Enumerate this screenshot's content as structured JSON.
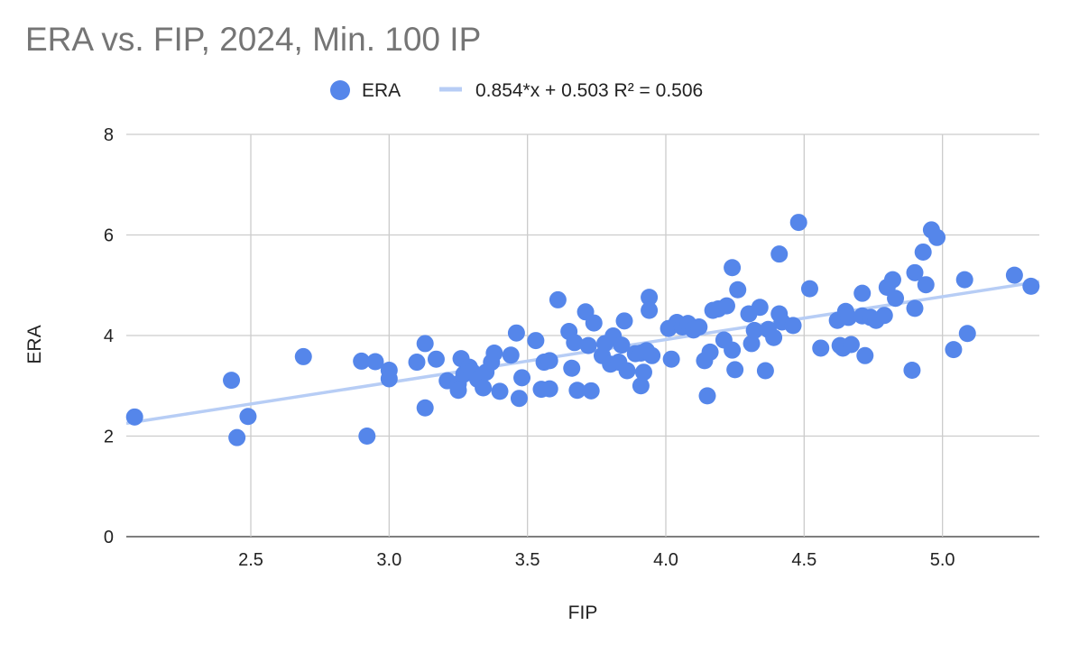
{
  "chart_data": {
    "type": "scatter",
    "title": "ERA vs. FIP, 2024, Min. 100 IP",
    "xlabel": "FIP",
    "ylabel": "ERA",
    "xlim": [
      2.05,
      5.35
    ],
    "ylim": [
      0,
      8
    ],
    "x_ticks": [
      2.5,
      3.0,
      3.5,
      4.0,
      4.5,
      5.0
    ],
    "x_tick_labels": [
      "2.5",
      "3.0",
      "3.5",
      "4.0",
      "4.5",
      "5.0"
    ],
    "y_ticks": [
      0,
      2,
      4,
      6,
      8
    ],
    "y_tick_labels": [
      "0",
      "2",
      "4",
      "6",
      "8"
    ],
    "grid": true,
    "legend_position": "top-center",
    "series": [
      {
        "name": "ERA",
        "color": "#5586ea",
        "points": [
          [
            2.08,
            2.38
          ],
          [
            2.43,
            3.11
          ],
          [
            2.45,
            1.97
          ],
          [
            2.49,
            2.39
          ],
          [
            2.69,
            3.58
          ],
          [
            2.9,
            3.49
          ],
          [
            2.92,
            2.0
          ],
          [
            2.95,
            3.48
          ],
          [
            3.0,
            3.31
          ],
          [
            3.0,
            3.14
          ],
          [
            3.1,
            3.47
          ],
          [
            3.13,
            3.84
          ],
          [
            3.13,
            2.56
          ],
          [
            3.17,
            3.53
          ],
          [
            3.21,
            3.1
          ],
          [
            3.25,
            3.04
          ],
          [
            3.25,
            2.91
          ],
          [
            3.26,
            3.54
          ],
          [
            3.27,
            3.23
          ],
          [
            3.29,
            3.37
          ],
          [
            3.3,
            3.28
          ],
          [
            3.32,
            3.13
          ],
          [
            3.34,
            2.96
          ],
          [
            3.35,
            3.27
          ],
          [
            3.37,
            3.47
          ],
          [
            3.38,
            3.65
          ],
          [
            3.4,
            2.89
          ],
          [
            3.44,
            3.61
          ],
          [
            3.46,
            4.05
          ],
          [
            3.47,
            2.75
          ],
          [
            3.48,
            3.16
          ],
          [
            3.53,
            3.9
          ],
          [
            3.55,
            2.93
          ],
          [
            3.56,
            3.47
          ],
          [
            3.58,
            3.5
          ],
          [
            3.58,
            2.94
          ],
          [
            3.61,
            4.71
          ],
          [
            3.65,
            4.08
          ],
          [
            3.66,
            3.35
          ],
          [
            3.67,
            3.86
          ],
          [
            3.68,
            2.91
          ],
          [
            3.71,
            4.47
          ],
          [
            3.72,
            3.8
          ],
          [
            3.73,
            2.9
          ],
          [
            3.74,
            4.25
          ],
          [
            3.77,
            3.6
          ],
          [
            3.78,
            3.84
          ],
          [
            3.8,
            3.43
          ],
          [
            3.81,
            3.99
          ],
          [
            3.83,
            3.47
          ],
          [
            3.84,
            3.81
          ],
          [
            3.85,
            4.29
          ],
          [
            3.86,
            3.3
          ],
          [
            3.89,
            3.64
          ],
          [
            3.91,
            3.65
          ],
          [
            3.91,
            3.0
          ],
          [
            3.92,
            3.27
          ],
          [
            3.93,
            3.7
          ],
          [
            3.94,
            4.76
          ],
          [
            3.94,
            4.5
          ],
          [
            3.95,
            3.6
          ],
          [
            4.01,
            4.14
          ],
          [
            4.02,
            3.53
          ],
          [
            4.04,
            4.26
          ],
          [
            4.06,
            4.17
          ],
          [
            4.08,
            4.24
          ],
          [
            4.1,
            4.11
          ],
          [
            4.12,
            4.17
          ],
          [
            4.14,
            3.5
          ],
          [
            4.15,
            2.8
          ],
          [
            4.16,
            3.67
          ],
          [
            4.17,
            4.5
          ],
          [
            4.19,
            4.53
          ],
          [
            4.21,
            3.91
          ],
          [
            4.22,
            4.59
          ],
          [
            4.24,
            5.35
          ],
          [
            4.24,
            3.71
          ],
          [
            4.25,
            3.32
          ],
          [
            4.26,
            4.91
          ],
          [
            4.3,
            4.43
          ],
          [
            4.31,
            3.84
          ],
          [
            4.32,
            4.1
          ],
          [
            4.34,
            4.56
          ],
          [
            4.36,
            3.3
          ],
          [
            4.37,
            4.12
          ],
          [
            4.39,
            3.96
          ],
          [
            4.41,
            5.62
          ],
          [
            4.41,
            4.43
          ],
          [
            4.42,
            4.27
          ],
          [
            4.46,
            4.2
          ],
          [
            4.48,
            6.25
          ],
          [
            4.52,
            4.93
          ],
          [
            4.56,
            3.75
          ],
          [
            4.62,
            4.3
          ],
          [
            4.63,
            3.8
          ],
          [
            4.64,
            3.75
          ],
          [
            4.65,
            4.48
          ],
          [
            4.66,
            4.36
          ],
          [
            4.67,
            3.82
          ],
          [
            4.71,
            4.84
          ],
          [
            4.71,
            4.39
          ],
          [
            4.72,
            3.6
          ],
          [
            4.74,
            4.36
          ],
          [
            4.76,
            4.3
          ],
          [
            4.79,
            4.4
          ],
          [
            4.8,
            4.96
          ],
          [
            4.82,
            5.11
          ],
          [
            4.83,
            4.74
          ],
          [
            4.89,
            3.31
          ],
          [
            4.9,
            5.25
          ],
          [
            4.9,
            4.54
          ],
          [
            4.93,
            5.66
          ],
          [
            4.94,
            5.01
          ],
          [
            4.96,
            6.1
          ],
          [
            4.98,
            5.95
          ],
          [
            5.04,
            3.72
          ],
          [
            5.08,
            5.11
          ],
          [
            5.09,
            4.04
          ],
          [
            5.26,
            5.2
          ],
          [
            5.32,
            4.98
          ]
        ]
      }
    ],
    "trendline": {
      "name": "0.854*x + 0.503 R² = 0.506",
      "slope": 0.854,
      "intercept": 0.503,
      "r2": 0.506,
      "color": "#b7cdf5"
    }
  }
}
